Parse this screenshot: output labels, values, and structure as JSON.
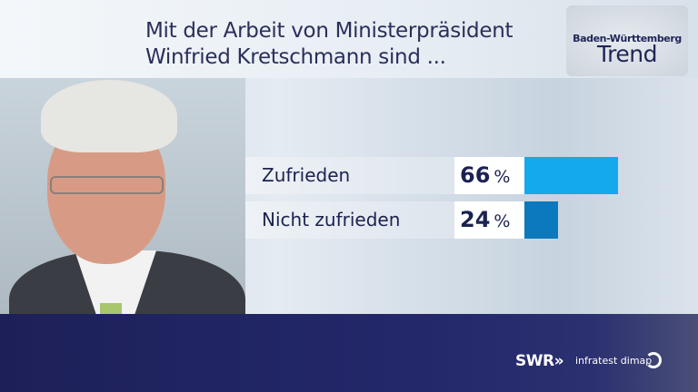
{
  "header": {
    "title_line1": "Mit der Arbeit von Ministerpräsident",
    "title_line2": "Winfried Kretschmann sind ..."
  },
  "logo": {
    "line1": "Baden-Württemberg",
    "line2": "Trend"
  },
  "chart_data": {
    "type": "bar",
    "orientation": "horizontal",
    "categories": [
      "Zufrieden",
      "Nicht zufrieden"
    ],
    "values": [
      66,
      24
    ],
    "unit": "%",
    "colors": [
      "#14a9ec",
      "#0c78bd"
    ],
    "xlim": [
      0,
      100
    ]
  },
  "footer": {
    "broadcaster": "SWR",
    "broadcaster_arrows": "»",
    "pollster": "infratest dimap"
  }
}
